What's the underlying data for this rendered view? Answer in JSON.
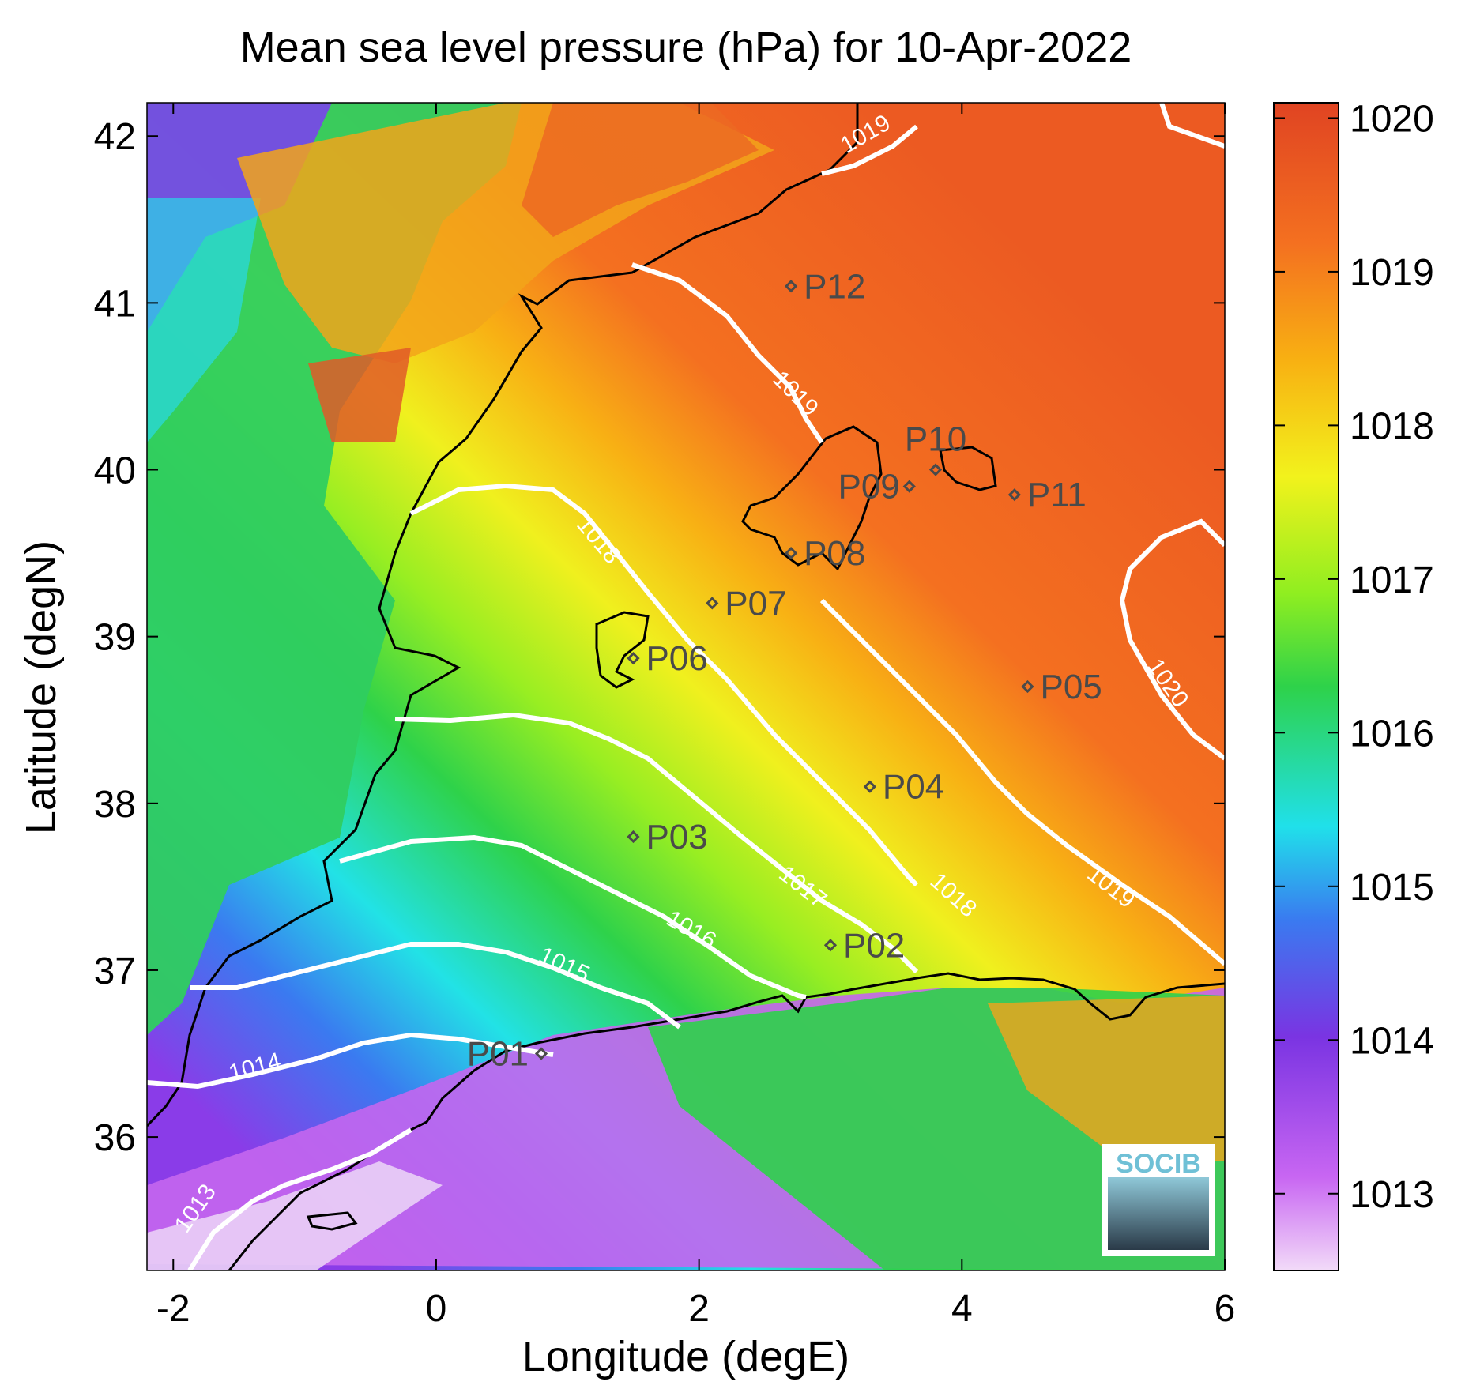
{
  "title": "Mean sea level pressure (hPa) for 10-Apr-2022",
  "xlabel": "Longitude (degE)",
  "ylabel": "Latitude (degN)",
  "x_ticks": [
    "-2",
    "0",
    "2",
    "4",
    "6"
  ],
  "y_ticks": [
    "42",
    "41",
    "40",
    "39",
    "38",
    "37",
    "36"
  ],
  "colorbar_ticks": [
    "1020",
    "1019",
    "1018",
    "1017",
    "1016",
    "1015",
    "1014",
    "1013"
  ],
  "contour_labels": [
    "1019",
    "1019",
    "1018",
    "1019",
    "1020",
    "1018",
    "1017",
    "1016",
    "1015",
    "1014",
    "1013"
  ],
  "points": [
    {
      "label": "P01",
      "lon": 0.8,
      "lat": 36.5
    },
    {
      "label": "P02",
      "lon": 3.0,
      "lat": 37.15
    },
    {
      "label": "P03",
      "lon": 1.5,
      "lat": 37.8
    },
    {
      "label": "P04",
      "lon": 3.3,
      "lat": 38.1
    },
    {
      "label": "P05",
      "lon": 4.5,
      "lat": 38.7
    },
    {
      "label": "P06",
      "lon": 1.5,
      "lat": 38.87
    },
    {
      "label": "P07",
      "lon": 2.1,
      "lat": 39.2
    },
    {
      "label": "P08",
      "lon": 2.7,
      "lat": 39.5
    },
    {
      "label": "P09",
      "lon": 3.6,
      "lat": 39.9
    },
    {
      "label": "P10",
      "lon": 3.8,
      "lat": 40.0
    },
    {
      "label": "P11",
      "lon": 4.4,
      "lat": 39.85
    },
    {
      "label": "P12",
      "lon": 2.7,
      "lat": 41.1
    }
  ],
  "logo_text": "SOCIB",
  "colors": {
    "contour": "#ffffff",
    "coast": "#000000",
    "marker": "#4a4a4a"
  },
  "chart_data": {
    "type": "heatmap",
    "title": "Mean sea level pressure (hPa) for 10-Apr-2022",
    "xlabel": "Longitude (degE)",
    "ylabel": "Latitude (degN)",
    "xlim": [
      -2.2,
      6.0
    ],
    "ylim": [
      35.2,
      42.2
    ],
    "clim": [
      1012.5,
      1020.1
    ],
    "contour_levels": [
      1013,
      1014,
      1015,
      1016,
      1017,
      1018,
      1019,
      1020
    ],
    "colormap": [
      "#f0d6f8",
      "#c060f0",
      "#7030e0",
      "#3080f0",
      "#20e0e8",
      "#30d040",
      "#a0f020",
      "#f0f020",
      "#f8a010",
      "#f06020",
      "#e04020"
    ]
  }
}
